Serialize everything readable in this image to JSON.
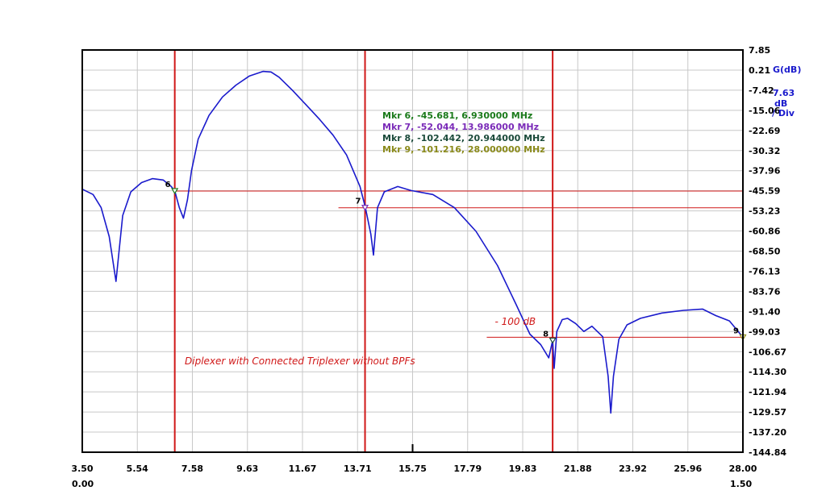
{
  "chart_data": {
    "type": "line",
    "title": "",
    "xlim": [
      3.5,
      28.0
    ],
    "ylim": [
      -144.84,
      7.85
    ],
    "x_ticks": [
      "3.50",
      "5.54",
      "7.58",
      "9.63",
      "11.67",
      "13.71",
      "15.75",
      "17.79",
      "19.83",
      "21.88",
      "23.92",
      "25.96",
      "28.00"
    ],
    "x_ticks_second": [
      "0.00",
      "1.50"
    ],
    "y_ticks": [
      "7.85",
      "0.21",
      "-7.42",
      "-15.06",
      "-22.69",
      "-30.32",
      "-37.96",
      "-45.59",
      "-53.23",
      "-60.86",
      "-68.50",
      "-76.13",
      "-83.76",
      "-91.40",
      "-99.03",
      "-106.67",
      "-114.30",
      "-121.94",
      "-129.57",
      "-137.20",
      "-144.84"
    ],
    "y_unit": "G(dB)",
    "scale_value": "7.63",
    "scale_unit": "dB\n/ Div",
    "grid": true,
    "series": [
      {
        "color": "#1a1acc",
        "x": [
          3.5,
          3.9,
          4.2,
          4.5,
          4.75,
          4.85,
          5.0,
          5.3,
          5.7,
          6.1,
          6.5,
          6.8,
          6.93,
          7.1,
          7.25,
          7.4,
          7.55,
          7.8,
          8.2,
          8.7,
          9.2,
          9.7,
          10.2,
          10.5,
          10.8,
          11.3,
          11.8,
          12.3,
          12.8,
          13.3,
          13.8,
          14.0,
          14.2,
          14.3,
          14.45,
          14.7,
          15.2,
          15.7,
          16.5,
          17.3,
          18.1,
          18.9,
          19.6,
          20.1,
          20.5,
          20.8,
          20.944,
          21.0,
          21.1,
          21.3,
          21.5,
          21.8,
          22.1,
          22.4,
          22.8,
          23.0,
          23.1,
          23.2,
          23.4,
          23.7,
          24.2,
          25.0,
          25.8,
          26.5,
          27.0,
          27.5,
          28.0
        ],
        "y": [
          -45.0,
          -47.0,
          -52.0,
          -63.0,
          -80.0,
          -70.0,
          -55.0,
          -46.0,
          -42.5,
          -41.0,
          -41.5,
          -44.0,
          -45.681,
          -52.0,
          -56.0,
          -49.0,
          -38.0,
          -26.0,
          -17.0,
          -10.0,
          -5.5,
          -2.0,
          -0.3,
          -0.5,
          -2.5,
          -7.5,
          -13.0,
          -18.5,
          -24.5,
          -32.0,
          -44.0,
          -52.044,
          -62.0,
          -70.0,
          -52.0,
          -46.0,
          -44.0,
          -45.5,
          -47.0,
          -52.0,
          -61.0,
          -74.0,
          -89.0,
          -100.0,
          -104.0,
          -109.0,
          -102.442,
          -113.0,
          -99.0,
          -94.5,
          -94.0,
          -96.0,
          -99.0,
          -97.0,
          -101.0,
          -116.0,
          -130.0,
          -116.0,
          -102.0,
          -96.5,
          -94.0,
          -92.0,
          -91.0,
          -90.5,
          -93.0,
          -95.0,
          -101.216
        ]
      }
    ],
    "markers": [
      {
        "number": "6",
        "x": 6.93,
        "y": -45.681,
        "color": "#1a7a1a",
        "label": "Mkr 6, -45.681, 6.930000 MHz"
      },
      {
        "number": "7",
        "x": 13.986,
        "y": -52.044,
        "color": "#7a2ab8",
        "label": "Mkr 7, -52.044, 13.986000 MHz"
      },
      {
        "number": "8",
        "x": 20.944,
        "y": -102.442,
        "color": "#1a4a3a",
        "label": "Mkr 8, -102.442, 20.944000 MHz"
      },
      {
        "number": "9",
        "x": 28.0,
        "y": -101.216,
        "color": "#8a8a1a",
        "label": "Mkr 9, -101.216, 28.000000 MHz"
      }
    ],
    "reference_lines": {
      "vertical_x": [
        6.93,
        13.986,
        20.944
      ],
      "horizontal": [
        {
          "y": -45.681,
          "x_from": 6.93,
          "x_to": 28.0
        },
        {
          "y": -52.044,
          "x_from": 13.0,
          "x_to": 28.0
        },
        {
          "y": -101.216,
          "x_from": 18.5,
          "x_to": 28.0
        }
      ]
    },
    "annotations": {
      "level_label": "- 100 dB",
      "level_label_x": 18.8,
      "level_label_y": -96.5,
      "note": "Diplexer with Connected Triplexer without BPFs",
      "note_x": 7.3,
      "note_y": -111.5
    }
  }
}
